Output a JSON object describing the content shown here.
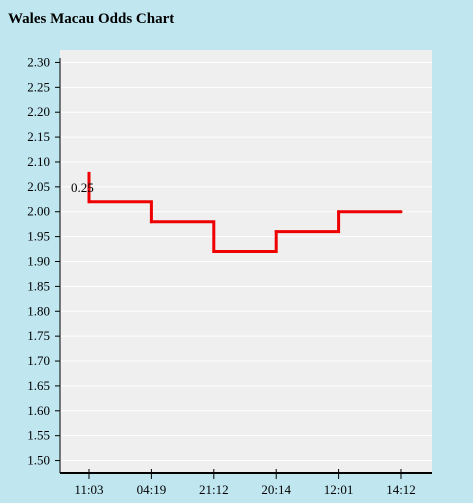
{
  "page": {
    "title": "Wales Macau Odds Chart"
  },
  "chart_data": {
    "type": "line",
    "title": "Wales Macau Odds Chart",
    "xlabel": "",
    "ylabel": "",
    "categories": [
      "11:03",
      "04:19",
      "21:12",
      "20:14",
      "12:01",
      "14:12"
    ],
    "series": [
      {
        "values": [
          2.02,
          1.98,
          1.92,
          1.96,
          2.0,
          2.0
        ]
      }
    ],
    "initial_value": 2.08,
    "ylim": [
      1.475,
      2.325
    ],
    "yticks": [
      "2.30",
      "2.25",
      "2.20",
      "2.15",
      "2.10",
      "2.05",
      "2.00",
      "1.95",
      "1.90",
      "1.85",
      "1.80",
      "1.75",
      "1.70",
      "1.65",
      "1.60",
      "1.55",
      "1.50"
    ],
    "annotations": [
      {
        "text": "0.25",
        "x": "11:03",
        "y": 2.05
      }
    ],
    "grid": true,
    "colors": {
      "background": "#c0e6f0",
      "plot": "#efefef",
      "line": "#ee0000",
      "grid": "#ffffff"
    }
  }
}
